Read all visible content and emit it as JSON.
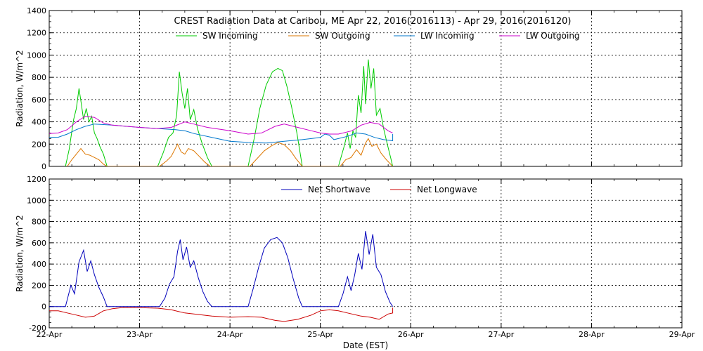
{
  "chart_data": [
    {
      "type": "line",
      "title": "CREST Radiation Data at Caribou, ME   Apr 22, 2016(2016113) - Apr 29, 2016(2016120)",
      "ylabel": "Radiation, W/m^2",
      "ylim": [
        0,
        1400
      ],
      "yticks": [
        0,
        200,
        400,
        600,
        800,
        1000,
        1200,
        1400
      ],
      "xlim": [
        0,
        7
      ],
      "x_tick_labels": [
        "22-Apr",
        "23-Apr",
        "24-Apr",
        "25-Apr",
        "26-Apr",
        "27-Apr",
        "28-Apr",
        "29-Apr"
      ],
      "grid": true,
      "legend_position": "top",
      "series": [
        {
          "name": "SW Incoming",
          "color": "#00cc00",
          "points": [
            [
              0.18,
              0
            ],
            [
              0.22,
              150
            ],
            [
              0.27,
              420
            ],
            [
              0.3,
              520
            ],
            [
              0.33,
              700
            ],
            [
              0.35,
              590
            ],
            [
              0.38,
              420
            ],
            [
              0.41,
              520
            ],
            [
              0.44,
              400
            ],
            [
              0.47,
              450
            ],
            [
              0.5,
              300
            ],
            [
              0.53,
              250
            ],
            [
              0.56,
              180
            ],
            [
              0.6,
              110
            ],
            [
              0.64,
              0
            ],
            [
              1.2,
              0
            ],
            [
              1.26,
              120
            ],
            [
              1.32,
              260
            ],
            [
              1.37,
              300
            ],
            [
              1.41,
              460
            ],
            [
              1.44,
              850
            ],
            [
              1.47,
              660
            ],
            [
              1.5,
              520
            ],
            [
              1.53,
              700
            ],
            [
              1.56,
              420
            ],
            [
              1.6,
              510
            ],
            [
              1.64,
              340
            ],
            [
              1.69,
              210
            ],
            [
              1.75,
              80
            ],
            [
              1.8,
              0
            ],
            [
              2.2,
              0
            ],
            [
              2.27,
              260
            ],
            [
              2.33,
              520
            ],
            [
              2.4,
              730
            ],
            [
              2.47,
              850
            ],
            [
              2.53,
              880
            ],
            [
              2.58,
              860
            ],
            [
              2.63,
              720
            ],
            [
              2.68,
              540
            ],
            [
              2.74,
              300
            ],
            [
              2.8,
              0
            ],
            [
              3.2,
              0
            ],
            [
              3.26,
              170
            ],
            [
              3.3,
              300
            ],
            [
              3.33,
              160
            ],
            [
              3.36,
              320
            ],
            [
              3.39,
              260
            ],
            [
              3.42,
              640
            ],
            [
              3.45,
              480
            ],
            [
              3.48,
              900
            ],
            [
              3.5,
              560
            ],
            [
              3.53,
              960
            ],
            [
              3.56,
              700
            ],
            [
              3.59,
              880
            ],
            [
              3.62,
              460
            ],
            [
              3.66,
              520
            ],
            [
              3.7,
              340
            ],
            [
              3.74,
              200
            ],
            [
              3.78,
              70
            ],
            [
              3.8,
              0
            ]
          ]
        },
        {
          "name": "SW Outgoing",
          "color": "#dd7700",
          "points": [
            [
              0.2,
              0
            ],
            [
              0.25,
              60
            ],
            [
              0.3,
              110
            ],
            [
              0.35,
              160
            ],
            [
              0.4,
              110
            ],
            [
              0.45,
              100
            ],
            [
              0.5,
              80
            ],
            [
              0.55,
              60
            ],
            [
              0.6,
              20
            ],
            [
              0.64,
              0
            ],
            [
              1.22,
              0
            ],
            [
              1.3,
              50
            ],
            [
              1.35,
              90
            ],
            [
              1.42,
              200
            ],
            [
              1.46,
              130
            ],
            [
              1.5,
              110
            ],
            [
              1.54,
              160
            ],
            [
              1.6,
              140
            ],
            [
              1.66,
              90
            ],
            [
              1.72,
              40
            ],
            [
              1.78,
              0
            ],
            [
              2.22,
              0
            ],
            [
              2.3,
              70
            ],
            [
              2.38,
              140
            ],
            [
              2.46,
              185
            ],
            [
              2.53,
              215
            ],
            [
              2.6,
              195
            ],
            [
              2.67,
              140
            ],
            [
              2.73,
              70
            ],
            [
              2.8,
              0
            ],
            [
              3.22,
              0
            ],
            [
              3.28,
              60
            ],
            [
              3.34,
              80
            ],
            [
              3.4,
              150
            ],
            [
              3.45,
              100
            ],
            [
              3.5,
              210
            ],
            [
              3.53,
              250
            ],
            [
              3.57,
              180
            ],
            [
              3.62,
              200
            ],
            [
              3.67,
              120
            ],
            [
              3.73,
              60
            ],
            [
              3.8,
              0
            ]
          ]
        },
        {
          "name": "LW Incoming",
          "color": "#0077cc",
          "points": [
            [
              0,
              260
            ],
            [
              0.1,
              262
            ],
            [
              0.2,
              290
            ],
            [
              0.3,
              330
            ],
            [
              0.4,
              360
            ],
            [
              0.5,
              380
            ],
            [
              0.6,
              375
            ],
            [
              0.7,
              370
            ],
            [
              0.85,
              360
            ],
            [
              1,
              350
            ],
            [
              1.2,
              340
            ],
            [
              1.4,
              330
            ],
            [
              1.5,
              320
            ],
            [
              1.6,
              295
            ],
            [
              1.8,
              260
            ],
            [
              2,
              225
            ],
            [
              2.2,
              215
            ],
            [
              2.4,
              210
            ],
            [
              2.6,
              225
            ],
            [
              2.8,
              240
            ],
            [
              2.9,
              250
            ],
            [
              3,
              260
            ],
            [
              3.05,
              290
            ],
            [
              3.1,
              280
            ],
            [
              3.15,
              240
            ],
            [
              3.2,
              250
            ],
            [
              3.3,
              270
            ],
            [
              3.4,
              300
            ],
            [
              3.5,
              290
            ],
            [
              3.6,
              260
            ],
            [
              3.7,
              240
            ],
            [
              3.8,
              230
            ],
            [
              3.8,
              290
            ]
          ]
        },
        {
          "name": "LW Outgoing",
          "color": "#cc00cc",
          "points": [
            [
              0,
              295
            ],
            [
              0.1,
              300
            ],
            [
              0.2,
              330
            ],
            [
              0.3,
              400
            ],
            [
              0.4,
              450
            ],
            [
              0.5,
              440
            ],
            [
              0.6,
              390
            ],
            [
              0.7,
              370
            ],
            [
              0.85,
              360
            ],
            [
              1,
              350
            ],
            [
              1.2,
              340
            ],
            [
              1.35,
              350
            ],
            [
              1.5,
              400
            ],
            [
              1.6,
              380
            ],
            [
              1.75,
              350
            ],
            [
              2,
              320
            ],
            [
              2.2,
              290
            ],
            [
              2.35,
              300
            ],
            [
              2.5,
              360
            ],
            [
              2.6,
              380
            ],
            [
              2.75,
              350
            ],
            [
              2.9,
              320
            ],
            [
              3,
              300
            ],
            [
              3.1,
              290
            ],
            [
              3.2,
              290
            ],
            [
              3.35,
              320
            ],
            [
              3.45,
              370
            ],
            [
              3.55,
              395
            ],
            [
              3.65,
              380
            ],
            [
              3.75,
              320
            ],
            [
              3.8,
              300
            ]
          ]
        }
      ]
    },
    {
      "type": "line",
      "ylabel": "Radiation, W/m^2",
      "xlabel": "Date (EST)",
      "ylim": [
        -200,
        1200
      ],
      "yticks": [
        -200,
        0,
        200,
        400,
        600,
        800,
        1000,
        1200
      ],
      "xlim": [
        0,
        7
      ],
      "x_tick_labels": [
        "22-Apr",
        "23-Apr",
        "24-Apr",
        "25-Apr",
        "26-Apr",
        "27-Apr",
        "28-Apr",
        "29-Apr"
      ],
      "grid": true,
      "legend_position": "top",
      "series": [
        {
          "name": "Net Shortwave",
          "color": "#0000bb",
          "points": [
            [
              0,
              0
            ],
            [
              0.18,
              0
            ],
            [
              0.24,
              200
            ],
            [
              0.28,
              120
            ],
            [
              0.33,
              420
            ],
            [
              0.38,
              530
            ],
            [
              0.42,
              330
            ],
            [
              0.46,
              430
            ],
            [
              0.5,
              300
            ],
            [
              0.55,
              180
            ],
            [
              0.6,
              90
            ],
            [
              0.64,
              0
            ],
            [
              1.22,
              0
            ],
            [
              1.28,
              80
            ],
            [
              1.33,
              210
            ],
            [
              1.38,
              280
            ],
            [
              1.42,
              520
            ],
            [
              1.45,
              630
            ],
            [
              1.48,
              440
            ],
            [
              1.52,
              560
            ],
            [
              1.56,
              370
            ],
            [
              1.6,
              430
            ],
            [
              1.65,
              270
            ],
            [
              1.7,
              140
            ],
            [
              1.75,
              50
            ],
            [
              1.8,
              0
            ],
            [
              2.2,
              0
            ],
            [
              2.26,
              180
            ],
            [
              2.32,
              380
            ],
            [
              2.38,
              550
            ],
            [
              2.45,
              630
            ],
            [
              2.52,
              650
            ],
            [
              2.58,
              600
            ],
            [
              2.64,
              460
            ],
            [
              2.7,
              260
            ],
            [
              2.76,
              80
            ],
            [
              2.8,
              0
            ],
            [
              3.2,
              0
            ],
            [
              3.25,
              120
            ],
            [
              3.3,
              280
            ],
            [
              3.34,
              150
            ],
            [
              3.38,
              300
            ],
            [
              3.42,
              500
            ],
            [
              3.46,
              350
            ],
            [
              3.5,
              710
            ],
            [
              3.54,
              490
            ],
            [
              3.58,
              680
            ],
            [
              3.62,
              370
            ],
            [
              3.67,
              300
            ],
            [
              3.72,
              140
            ],
            [
              3.77,
              40
            ],
            [
              3.8,
              0
            ]
          ]
        },
        {
          "name": "Net Longwave",
          "color": "#cc0000",
          "points": [
            [
              0,
              -40
            ],
            [
              0.1,
              -40
            ],
            [
              0.2,
              -60
            ],
            [
              0.3,
              -80
            ],
            [
              0.4,
              -100
            ],
            [
              0.5,
              -90
            ],
            [
              0.6,
              -40
            ],
            [
              0.7,
              -20
            ],
            [
              0.8,
              -10
            ],
            [
              1,
              -10
            ],
            [
              1.2,
              -15
            ],
            [
              1.35,
              -30
            ],
            [
              1.5,
              -60
            ],
            [
              1.6,
              -70
            ],
            [
              1.8,
              -90
            ],
            [
              2,
              -100
            ],
            [
              2.2,
              -95
            ],
            [
              2.35,
              -100
            ],
            [
              2.5,
              -130
            ],
            [
              2.6,
              -140
            ],
            [
              2.75,
              -120
            ],
            [
              2.9,
              -80
            ],
            [
              3,
              -40
            ],
            [
              3.1,
              -30
            ],
            [
              3.2,
              -40
            ],
            [
              3.3,
              -60
            ],
            [
              3.45,
              -90
            ],
            [
              3.55,
              -100
            ],
            [
              3.65,
              -120
            ],
            [
              3.75,
              -70
            ],
            [
              3.8,
              -60
            ],
            [
              3.8,
              -10
            ]
          ]
        }
      ]
    }
  ]
}
